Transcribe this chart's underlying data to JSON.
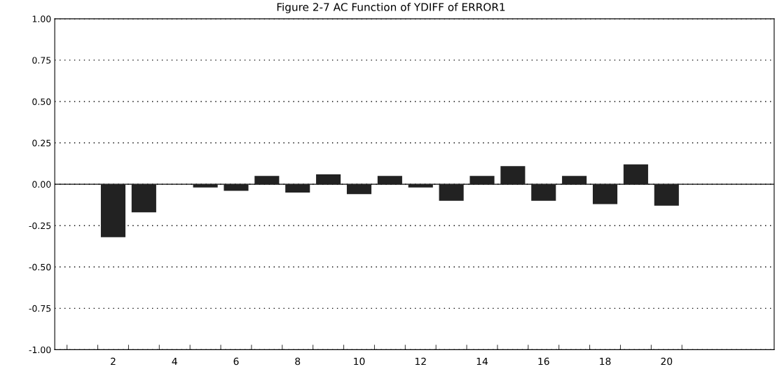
{
  "chart_data": {
    "type": "bar",
    "title": "Figure 2-7 AC Function of YDIFF of ERROR1",
    "categories": [
      null,
      "2",
      null,
      "4",
      null,
      "6",
      null,
      "8",
      null,
      "10",
      null,
      "12",
      null,
      "14",
      null,
      "16",
      null,
      "18",
      null,
      "20"
    ],
    "values": [
      null,
      -0.32,
      -0.17,
      0.0,
      -0.02,
      -0.04,
      0.05,
      -0.05,
      0.06,
      -0.06,
      0.05,
      -0.02,
      -0.1,
      0.05,
      0.11,
      -0.1,
      0.05,
      -0.12,
      0.12,
      -0.13
    ],
    "color": "#222222",
    "ylim": [
      -1.0,
      1.0
    ],
    "yticks": [
      {
        "value": -1.0,
        "label": "-1.00"
      },
      {
        "value": -0.75,
        "label": "-0.75"
      },
      {
        "value": -0.5,
        "label": "-0.50"
      },
      {
        "value": -0.25,
        "label": "-0.25"
      },
      {
        "value": 0.0,
        "label": "0.00"
      },
      {
        "value": 0.25,
        "label": "0.25"
      },
      {
        "value": 0.5,
        "label": "0.50"
      },
      {
        "value": 0.75,
        "label": "0.75"
      },
      {
        "value": 1.0,
        "label": "1.00"
      }
    ],
    "grid": "y",
    "ref_lines": [
      {
        "axis": "y",
        "value": 0.0,
        "color": "#000000"
      }
    ]
  }
}
